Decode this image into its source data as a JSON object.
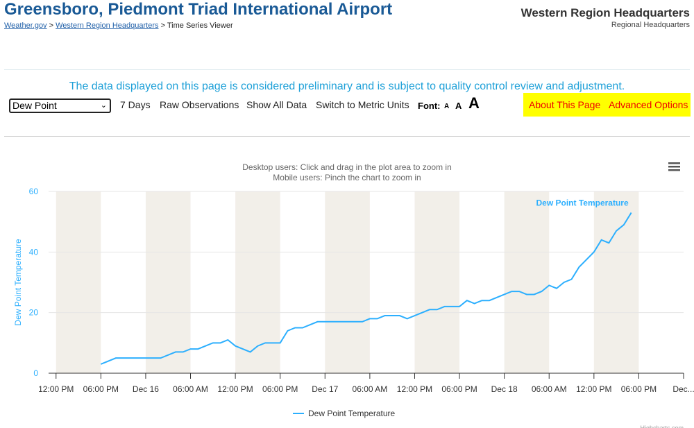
{
  "header": {
    "title": "Greensboro, Piedmont Triad International Airport",
    "breadcrumb": {
      "home": "Weather.gov",
      "sep": ">",
      "region": "Western Region Headquarters",
      "current": "> Time Series Viewer"
    },
    "org": "Western Region Headquarters",
    "org_sub": "Regional Headquarters"
  },
  "notice": "The data displayed on this page is considered preliminary and is subject to quality control review and adjustment.",
  "toolbar": {
    "select": "Dew Point",
    "links": [
      "7 Days",
      "Raw Observations",
      "Show All Data",
      "Switch to Metric Units"
    ],
    "font_label": "Font:",
    "font_sizes": [
      "A",
      "A",
      "A"
    ],
    "highlight_links": [
      "About This Page",
      "Advanced Options"
    ]
  },
  "chart_data": {
    "type": "line",
    "subtitle": [
      "Desktop users: Click and drag in the plot area to zoom in",
      "Mobile users: Pinch the chart to zoom in"
    ],
    "y_label": "Dew Point Temperature",
    "credits": "Highcharts.com",
    "xlim": [
      "Dec 15 11:00",
      "Dec 19 00:00"
    ],
    "xticks": [
      {
        "value": "Dec 15 12:00",
        "label": "12:00 PM"
      },
      {
        "value": "Dec 15 18:00",
        "label": "06:00 PM"
      },
      {
        "value": "Dec 16 00:00",
        "label": "Dec 16"
      },
      {
        "value": "Dec 16 06:00",
        "label": "06:00 AM"
      },
      {
        "value": "Dec 16 12:00",
        "label": "12:00 PM"
      },
      {
        "value": "Dec 16 18:00",
        "label": "06:00 PM"
      },
      {
        "value": "Dec 17 00:00",
        "label": "Dec 17"
      },
      {
        "value": "Dec 17 06:00",
        "label": "06:00 AM"
      },
      {
        "value": "Dec 17 12:00",
        "label": "12:00 PM"
      },
      {
        "value": "Dec 17 18:00",
        "label": "06:00 PM"
      },
      {
        "value": "Dec 18 00:00",
        "label": "Dec 18"
      },
      {
        "value": "Dec 18 06:00",
        "label": "06:00 AM"
      },
      {
        "value": "Dec 18 12:00",
        "label": "12:00 PM"
      },
      {
        "value": "Dec 18 18:00",
        "label": "06:00 PM"
      },
      {
        "value": "Dec 19 00:00",
        "label": "Dec..."
      }
    ],
    "ylim": [
      0,
      60
    ],
    "yticks": [
      0,
      20,
      40,
      60
    ],
    "grid": true,
    "x": [
      "Dec 15 18:00",
      "Dec 15 20:00",
      "Dec 15 23:00",
      "Dec 16 02:00",
      "Dec 16 04:00",
      "Dec 16 05:00",
      "Dec 16 06:00",
      "Dec 16 07:00",
      "Dec 16 09:00",
      "Dec 16 10:00",
      "Dec 16 11:00",
      "Dec 16 12:00",
      "Dec 16 14:00",
      "Dec 16 15:00",
      "Dec 16 16:00",
      "Dec 16 18:00",
      "Dec 16 19:00",
      "Dec 16 20:00",
      "Dec 16 21:00",
      "Dec 16 23:00",
      "Dec 17 00:00",
      "Dec 17 05:00",
      "Dec 17 06:00",
      "Dec 17 07:00",
      "Dec 17 08:00",
      "Dec 17 10:00",
      "Dec 17 11:00",
      "Dec 17 13:00",
      "Dec 17 14:00",
      "Dec 17 15:00",
      "Dec 17 16:00",
      "Dec 17 18:00",
      "Dec 17 19:00",
      "Dec 17 20:00",
      "Dec 17 21:00",
      "Dec 17 22:00",
      "Dec 18 00:00",
      "Dec 18 01:00",
      "Dec 18 02:00",
      "Dec 18 03:00",
      "Dec 18 04:00",
      "Dec 18 05:00",
      "Dec 18 06:00",
      "Dec 18 07:00",
      "Dec 18 08:00",
      "Dec 18 09:00",
      "Dec 18 10:00",
      "Dec 18 12:00",
      "Dec 18 13:00",
      "Dec 18 14:00",
      "Dec 18 15:00",
      "Dec 18 16:00",
      "Dec 18 17:00"
    ],
    "series": [
      {
        "name": "Dew Point Temperature",
        "color": "#2caffe",
        "values": [
          3,
          5,
          5,
          5,
          7,
          7,
          8,
          8,
          10,
          10,
          11,
          9,
          7,
          9,
          10,
          10,
          14,
          15,
          15,
          17,
          17,
          17,
          18,
          18,
          19,
          19,
          18,
          20,
          21,
          21,
          22,
          22,
          24,
          23,
          24,
          24,
          26,
          27,
          27,
          26,
          26,
          27,
          29,
          28,
          30,
          31,
          35,
          40,
          44,
          43,
          47,
          49,
          53
        ]
      }
    ],
    "band_color": "#f2efe9"
  }
}
